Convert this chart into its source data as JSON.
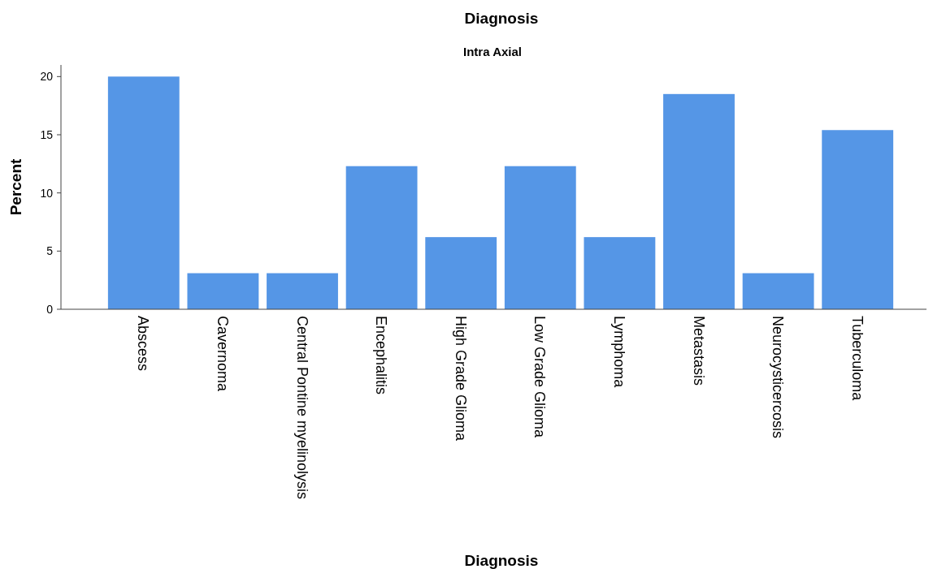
{
  "chart_data": {
    "type": "bar",
    "title": "Diagnosis",
    "subtitle": "Intra Axial",
    "xlabel": "Diagnosis",
    "ylabel": "Percent",
    "categories": [
      "Abscess",
      "Cavernoma",
      "Central Pontine myelinolysis",
      "Encephalitis",
      "High Grade Glioma",
      "Low Grade Glioma",
      "Lymphoma",
      "Metastasis",
      "Neurocysticercosis",
      "Tuberculoma"
    ],
    "values": [
      20,
      3.1,
      3.1,
      12.3,
      6.2,
      12.3,
      6.2,
      18.5,
      3.1,
      15.4
    ],
    "color": "#5596e6",
    "ylim": [
      0,
      21
    ],
    "yticks": [
      0,
      5,
      10,
      15,
      20
    ],
    "grid": false
  }
}
